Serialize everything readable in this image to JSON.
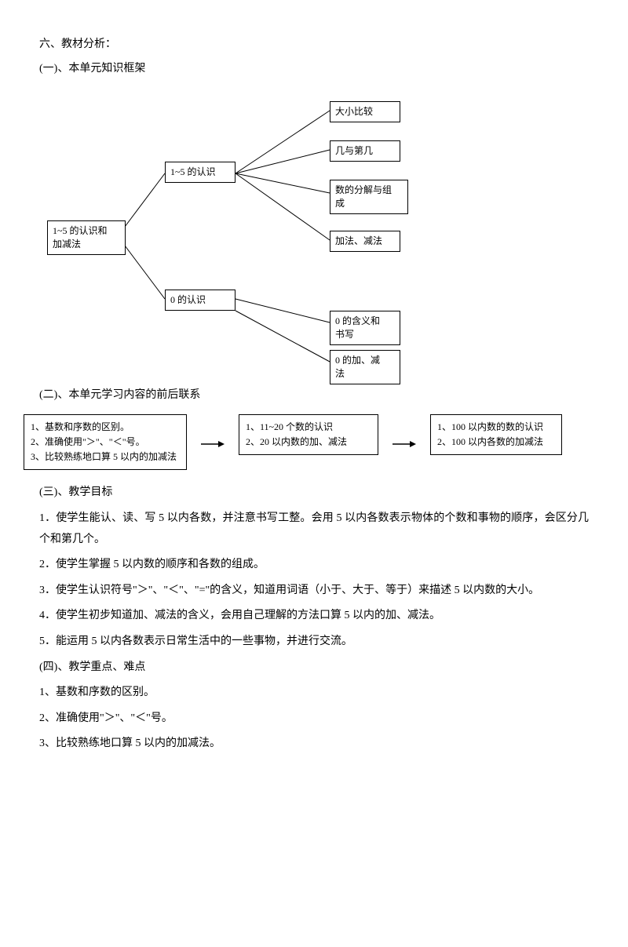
{
  "title_6": "六、教材分析：",
  "sub_1": "(一)、本单元知识框架",
  "diagram1": {
    "nodes": {
      "root": "1~5 的认识和\n加减法",
      "mid1": "1~5 的认识",
      "mid2": "0 的认识",
      "leaf1": "大小比较",
      "leaf2": "几与第几",
      "leaf3": "数的分解与组\n成",
      "leaf4": "加法、减法",
      "leaf5": "0 的含义和\n书写",
      "leaf6": "0 的加、减\n法"
    }
  },
  "sub_2": "(二)、本单元学习内容的前后联系",
  "flow": {
    "box1_l1": "1、基数和序数的区别。",
    "box1_l2": "2、准确使用\"＞\"、\"＜\"号。",
    "box1_l3": "3、比较熟练地口算 5 以内的加减法",
    "box2_l1": "1、11~20 个数的认识",
    "box2_l2": "2、20 以内数的加、减法",
    "box3_l1": "1、100 以内数的数的认识",
    "box3_l2": "2、100 以内各数的加减法"
  },
  "sub_3": "(三)、教学目标",
  "goals": {
    "g1": "1．使学生能认、读、写 5 以内各数，并注意书写工整。会用 5 以内各数表示物体的个数和事物的顺序，会区分几个和第几个。",
    "g2": "2．使学生掌握 5 以内数的顺序和各数的组成。",
    "g3": "3．使学生认识符号\"＞\"、\"＜\"、\"=\"的含义，知道用词语（小于、大于、等于）来描述 5 以内数的大小。",
    "g4": "4．使学生初步知道加、减法的含义，会用自己理解的方法口算 5 以内的加、减法。",
    "g5": "5．能运用 5 以内各数表示日常生活中的一些事物，并进行交流。"
  },
  "sub_4": "(四)、教学重点、难点",
  "points": {
    "p1": "1、基数和序数的区别。",
    "p2": "2、准确使用\"＞\"、\"＜\"号。",
    "p3": "3、比较熟练地口算 5 以内的加减法。"
  }
}
